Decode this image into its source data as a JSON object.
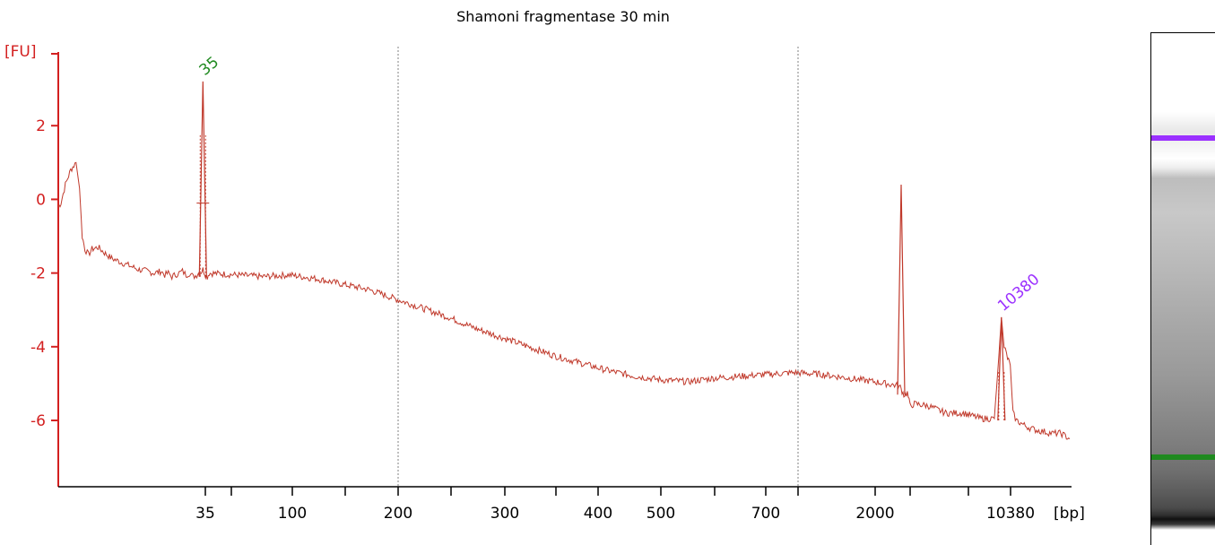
{
  "chart_data": {
    "type": "line",
    "title": "Shamoni fragmentase 30 min",
    "ylabel": "[FU]",
    "xunit": "[bp]",
    "ylim": [
      -7.8,
      4.0
    ],
    "y_ticks": [
      2,
      0,
      -2,
      -4,
      -6
    ],
    "x_tick_labels": [
      "35",
      "100",
      "200",
      "300",
      "400",
      "500",
      "700",
      "2000",
      "10380"
    ],
    "series": [
      {
        "color": "#c0392b",
        "x": [
          0,
          3,
          8,
          14,
          20,
          24,
          27,
          30,
          34,
          38,
          45,
          52,
          60,
          70,
          80,
          90,
          100,
          108,
          116,
          120,
          124,
          128,
          132,
          136,
          140,
          144,
          148,
          152,
          156,
          158,
          160,
          163,
          166,
          168,
          170,
          200,
          230,
          260,
          290,
          320,
          350,
          380,
          410,
          440,
          470,
          500,
          530,
          560,
          590,
          620,
          650,
          680,
          710,
          740,
          770,
          800,
          830,
          860,
          890,
          920,
          945,
          949,
          951,
          953,
          955,
          957,
          960,
          965,
          980,
          1000,
          1020,
          1040,
          1055,
          1060,
          1063,
          1066,
          1070,
          1073,
          1076,
          1080,
          1090,
          1100,
          1110,
          1120,
          1130,
          1140
        ],
        "values": [
          -0.2,
          -0.1,
          0.4,
          0.8,
          1.0,
          0.3,
          -1.0,
          -1.35,
          -1.5,
          -1.35,
          -1.3,
          -1.45,
          -1.6,
          -1.7,
          -1.8,
          -1.9,
          -1.95,
          -2.0,
          -1.95,
          -2.05,
          -2.0,
          -2.1,
          -2.05,
          -2.0,
          -1.95,
          -2.05,
          -2.0,
          -2.1,
          -2.05,
          -2.0,
          -2.0,
          -1.9,
          -2.05,
          -2.1,
          -2.0,
          -2.05,
          -2.1,
          -2.05,
          -2.15,
          -2.3,
          -2.45,
          -2.7,
          -2.95,
          -3.2,
          -3.5,
          -3.75,
          -4.0,
          -4.25,
          -4.45,
          -4.65,
          -4.8,
          -4.9,
          -4.95,
          -4.85,
          -4.8,
          -4.75,
          -4.7,
          -4.75,
          -4.85,
          -4.95,
          -5.05,
          -5.1,
          -5.2,
          -5.3,
          -5.3,
          -5.25,
          -5.6,
          -5.55,
          -5.6,
          -5.8,
          -5.8,
          -5.95,
          -5.95,
          -4.3,
          -3.2,
          -4.0,
          -4.3,
          -4.5,
          -5.8,
          -6.0,
          -6.15,
          -6.25,
          -6.3,
          -6.35,
          -6.35,
          -6.5
        ]
      }
    ],
    "peaks": [
      {
        "label": "35",
        "x": 163,
        "value": 3.2,
        "color": "#1f8a1f"
      },
      {
        "label": "10380",
        "x": 1063,
        "value": -3.2,
        "color": "#9b30ff"
      },
      {
        "label": "",
        "x": 950,
        "value": 0.4,
        "color": "#c0392b"
      }
    ],
    "gridlines_x": [
      "200",
      "2000"
    ],
    "colors": {
      "axis": "#d32020",
      "trace": "#c0392b",
      "lower_marker": "#1f8a1f",
      "upper_marker": "#9b30ff",
      "grid": "#808080"
    }
  },
  "gel": {
    "upper_marker_color": "#9b30ff",
    "lower_marker_color": "#1f8a1f"
  }
}
